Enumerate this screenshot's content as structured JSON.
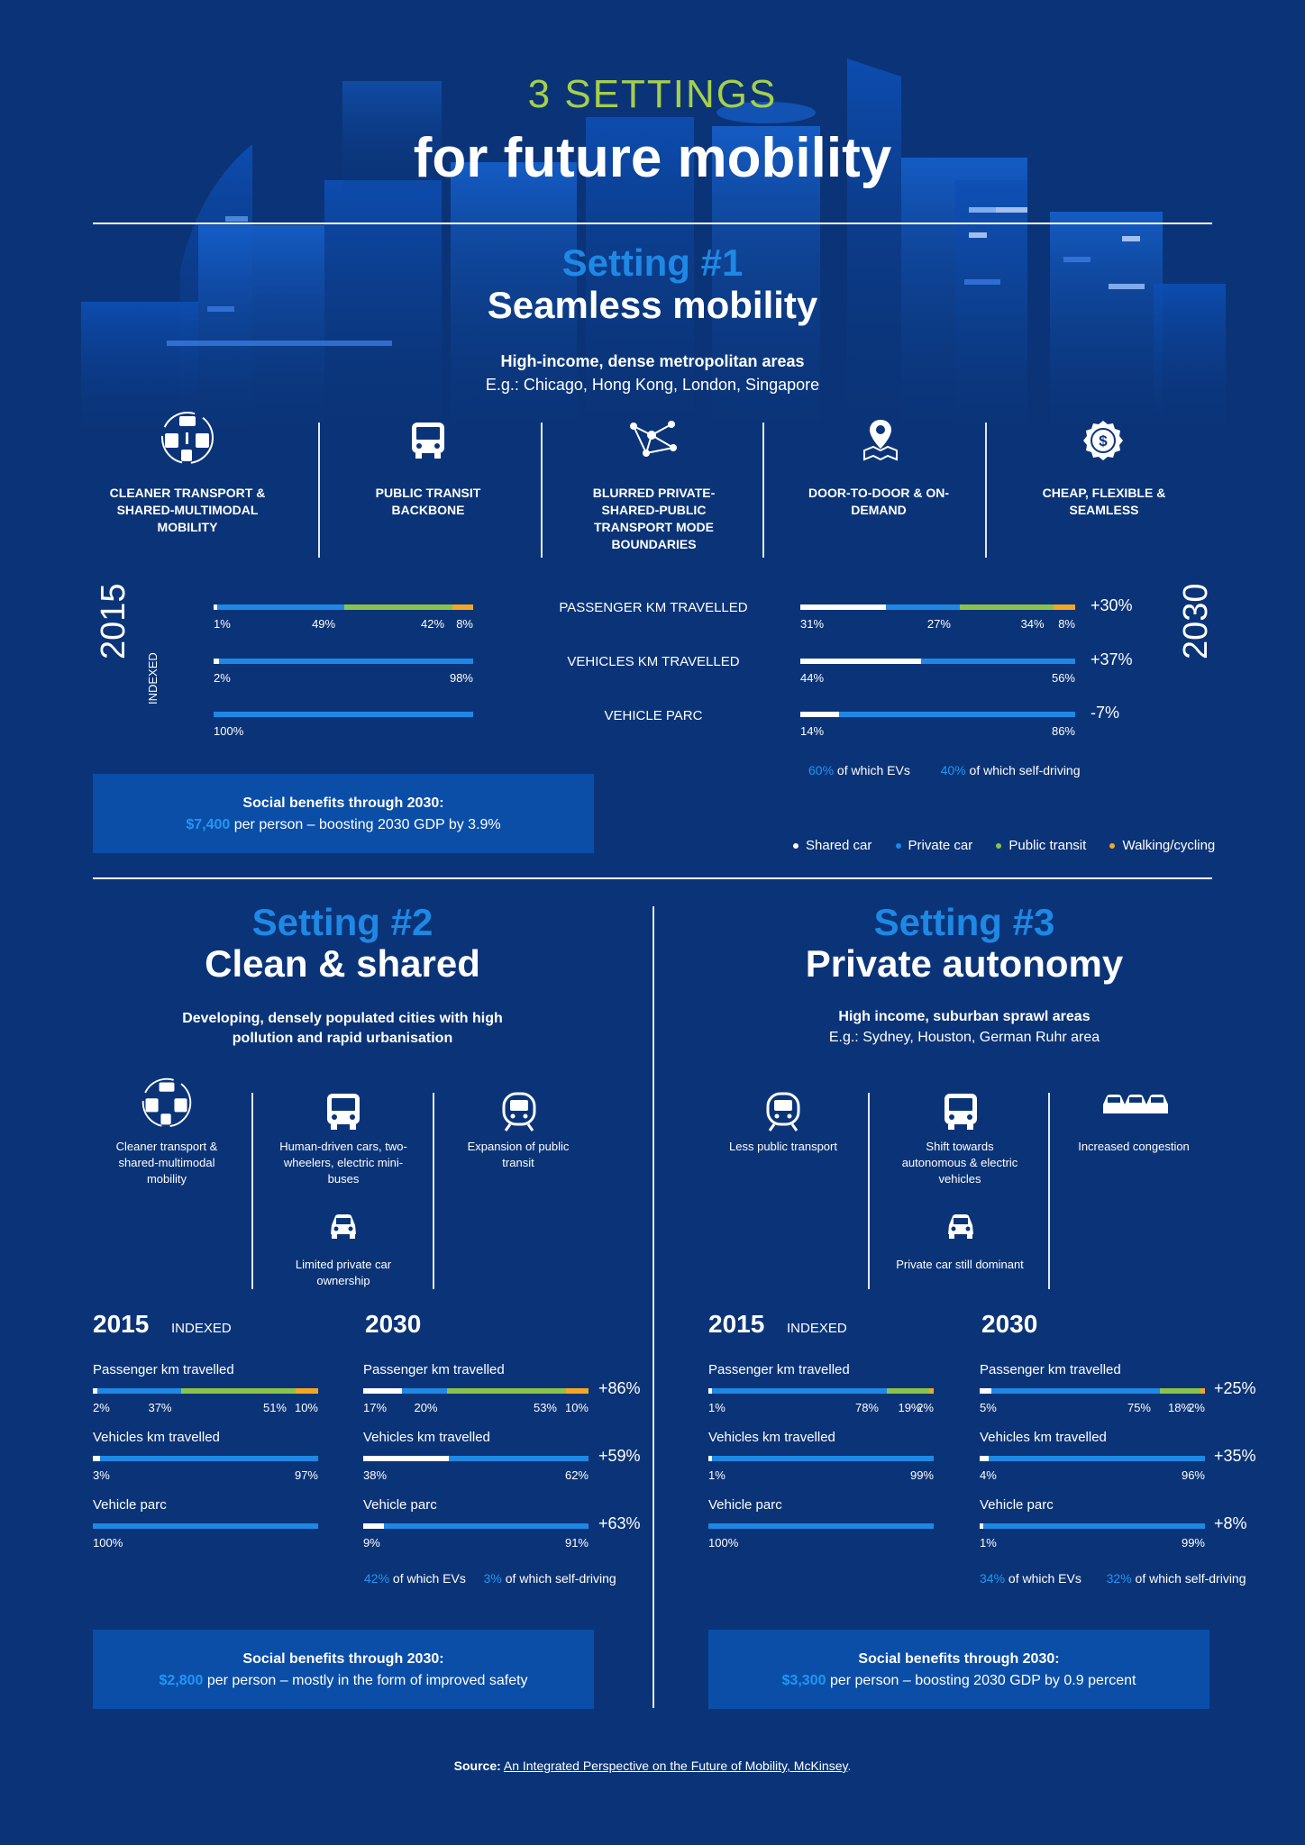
{
  "header": {
    "kicker": "3 SETTINGS",
    "title": "for future mobility"
  },
  "colors": {
    "shared": "#ffffff",
    "private": "#1e88e5",
    "transit": "#8bc34a",
    "walking": "#f5a623",
    "background": "#0b3478",
    "panel": "#0a4ea8"
  },
  "s1": {
    "num": "Setting #1",
    "name": "Seamless mobility",
    "sub": "High-income, dense metropolitan areas",
    "eg": "E.g.: Chicago, Hong Kong, London, Singapore",
    "features": [
      {
        "icon": "shared-multimodal-icon",
        "label": "CLEANER TRANSPORT & SHARED-MULTIMODAL MOBILITY"
      },
      {
        "icon": "bus-icon",
        "label": "PUBLIC TRANSIT BACKBONE"
      },
      {
        "icon": "network-icon",
        "label": "BLURRED PRIVATE-SHARED-PUBLIC TRANSPORT MODE BOUNDARIES"
      },
      {
        "icon": "map-pin-icon",
        "label": "DOOR-TO-DOOR & ON-DEMAND"
      },
      {
        "icon": "dollar-badge-icon",
        "label": "CHEAP, FLEXIBLE & SEAMLESS"
      }
    ],
    "year_left": "2015",
    "indexed": "INDEXED",
    "year_right": "2030",
    "rows": [
      {
        "label": "PASSENGER KM TRAVELLED",
        "v2015": [
          1,
          49,
          42,
          8
        ],
        "l2015": [
          "1%",
          "49%",
          "42%",
          "8%"
        ],
        "v2030": [
          31,
          27,
          34,
          8
        ],
        "l2030": [
          "31%",
          "27%",
          "34%",
          "8%"
        ],
        "change": "+30%"
      },
      {
        "label": "VEHICLES KM TRAVELLED",
        "v2015": [
          2,
          98
        ],
        "l2015": [
          "2%",
          "98%"
        ],
        "v2030": [
          44,
          56
        ],
        "l2030": [
          "44%",
          "56%"
        ],
        "change": "+37%"
      },
      {
        "label": "VEHICLE PARC",
        "v2015": [
          0,
          100
        ],
        "l2015": [
          "100%"
        ],
        "v2030": [
          14,
          86
        ],
        "l2030": [
          "14%",
          "86%"
        ],
        "change": "-7%"
      }
    ],
    "ev_pct": "60%",
    "ev_text": " of which EVs",
    "sd_pct": "40%",
    "sd_text": " of which self-driving",
    "benefit_title": "Social benefits through 2030:",
    "benefit_amount": "$7,400",
    "benefit_text": " per person – boosting 2030 GDP by 3.9%"
  },
  "legend": [
    {
      "label": "Shared car",
      "color": "#ffffff"
    },
    {
      "label": "Private car",
      "color": "#1e88e5"
    },
    {
      "label": "Public transit",
      "color": "#8bc34a"
    },
    {
      "label": "Walking/cycling",
      "color": "#f5a623"
    }
  ],
  "s2": {
    "num": "Setting #2",
    "name": "Clean & shared",
    "sub": "Developing, densely populated cities with high pollution and rapid urbanisation",
    "features": [
      {
        "icon": "shared-multimodal-icon",
        "label": "Cleaner transport & shared-multimodal mobility"
      },
      {
        "icon": "bus-icon",
        "label": "Human-driven cars, two-wheelers, electric mini-buses"
      },
      {
        "icon": "train-icon",
        "label": "Expansion of public transit"
      },
      {
        "icon": "car-icon",
        "label": "Limited private car ownership"
      }
    ],
    "y2015": "2015",
    "indexed": "INDEXED",
    "y2030": "2030",
    "rows": [
      {
        "label": "Passenger km travelled",
        "v2015": [
          2,
          37,
          51,
          10
        ],
        "l2015": [
          "2%",
          "37%",
          "51%",
          "10%"
        ],
        "v2030": [
          17,
          20,
          53,
          10
        ],
        "l2030": [
          "17%",
          "20%",
          "53%",
          "10%"
        ],
        "change": "+86%"
      },
      {
        "label": "Vehicles km travelled",
        "v2015": [
          3,
          97
        ],
        "l2015": [
          "3%",
          "97%"
        ],
        "v2030": [
          38,
          62
        ],
        "l2030": [
          "38%",
          "62%"
        ],
        "change": "+59%"
      },
      {
        "label": "Vehicle parc",
        "v2015": [
          0,
          100
        ],
        "l2015": [
          "100%"
        ],
        "v2030": [
          9,
          91
        ],
        "l2030": [
          "9%",
          "91%"
        ],
        "change": "+63%"
      }
    ],
    "ev_pct": "42%",
    "ev_text": " of which EVs",
    "sd_pct": "3%",
    "sd_text": " of which self-driving",
    "benefit_title": "Social benefits through 2030:",
    "benefit_amount": "$2,800",
    "benefit_text": " per person – mostly in the form of improved safety"
  },
  "s3": {
    "num": "Setting #3",
    "name": "Private autonomy",
    "sub": "High income, suburban sprawl areas",
    "eg": "E.g.: Sydney, Houston, German Ruhr area",
    "features": [
      {
        "icon": "train-icon",
        "label": "Less public transport"
      },
      {
        "icon": "bus-icon",
        "label": "Shift towards autonomous & electric vehicles"
      },
      {
        "icon": "cars-icon",
        "label": "Increased congestion"
      },
      {
        "icon": "car-icon",
        "label": "Private car still dominant"
      }
    ],
    "y2015": "2015",
    "indexed": "INDEXED",
    "y2030": "2030",
    "rows": [
      {
        "label": "Passenger km travelled",
        "v2015": [
          1,
          78,
          19,
          2
        ],
        "l2015": [
          "1%",
          "78%",
          "19%",
          "2%"
        ],
        "v2030": [
          5,
          75,
          18,
          2
        ],
        "l2030": [
          "5%",
          "75%",
          "18%",
          "2%"
        ],
        "change": "+25%"
      },
      {
        "label": "Vehicles km travelled",
        "v2015": [
          1,
          99
        ],
        "l2015": [
          "1%",
          "99%"
        ],
        "v2030": [
          4,
          96
        ],
        "l2030": [
          "4%",
          "96%"
        ],
        "change": "+35%"
      },
      {
        "label": "Vehicle parc",
        "v2015": [
          0,
          100
        ],
        "l2015": [
          "100%"
        ],
        "v2030": [
          1,
          99
        ],
        "l2030": [
          "1%",
          "99%"
        ],
        "change": "+8%"
      }
    ],
    "ev_pct": "34%",
    "ev_text": " of which EVs",
    "sd_pct": "32%",
    "sd_text": " of which self-driving",
    "benefit_title": "Social benefits through 2030:",
    "benefit_amount": "$3,300",
    "benefit_text": " per person – boosting 2030 GDP by 0.9 percent"
  },
  "source": {
    "label": "Source:",
    "link": "An Integrated Perspective on the Future of Mobility, McKinsey",
    "end": "."
  }
}
